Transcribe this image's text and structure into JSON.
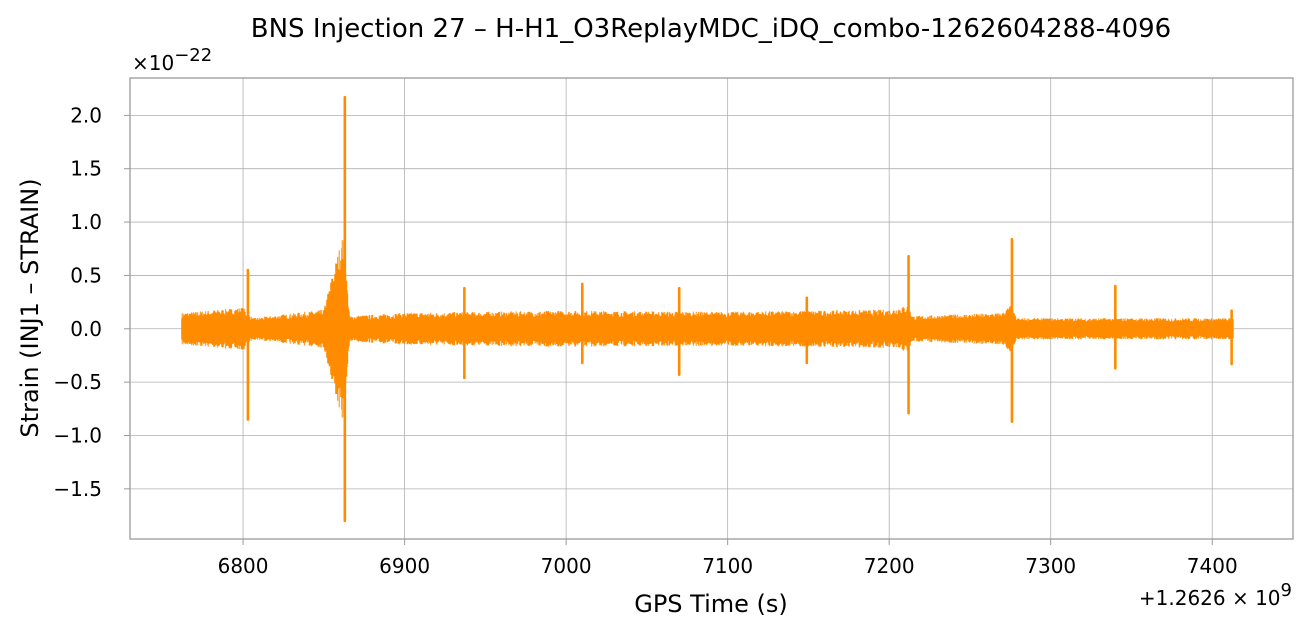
{
  "chart_data": {
    "type": "line",
    "title": "BNS Injection 27 – H-H1_O3ReplayMDC_iDQ_combo-1262604288-4096",
    "xlabel": "GPS Time (s)",
    "ylabel": "Strain (INJ1 – STRAIN)",
    "x_offset_label": "+1.2626 × 10^9",
    "y_scale_label": "×10^−22",
    "x_offset": 1262600000,
    "y_scale": 1e-22,
    "xlim": [
      6730,
      7450
    ],
    "ylim": [
      -1.97,
      2.35
    ],
    "xticks": [
      6800,
      6900,
      7000,
      7100,
      7200,
      7300,
      7400
    ],
    "yticks": [
      -1.5,
      -1.0,
      -0.5,
      0.0,
      0.5,
      1.0,
      1.5,
      2.0
    ],
    "ytick_labels": [
      "−1.5",
      "−1.0",
      "−0.5",
      "0.0",
      "0.5",
      "1.0",
      "1.5",
      "2.0"
    ],
    "grid": true,
    "series_color": "#ff8c00",
    "x_range": [
      6762,
      7413
    ],
    "spikes": [
      {
        "x": 6803,
        "max": 0.55,
        "min": -0.85
      },
      {
        "x": 6863,
        "max": 2.17,
        "min": -1.8
      },
      {
        "x": 6937,
        "max": 0.38,
        "min": -0.46
      },
      {
        "x": 7010,
        "max": 0.42,
        "min": -0.32
      },
      {
        "x": 7070,
        "max": 0.38,
        "min": -0.43
      },
      {
        "x": 7149,
        "max": 0.29,
        "min": -0.32
      },
      {
        "x": 7212,
        "max": 0.68,
        "min": -0.79
      },
      {
        "x": 7276,
        "max": 0.84,
        "min": -0.87
      },
      {
        "x": 7340,
        "max": 0.4,
        "min": -0.37
      },
      {
        "x": 7412,
        "max": 0.17,
        "min": -0.33
      }
    ],
    "noise_envelope": [
      {
        "x": 6762,
        "amp": 0.15
      },
      {
        "x": 6800,
        "amp": 0.2
      },
      {
        "x": 6806,
        "amp": 0.1
      },
      {
        "x": 6850,
        "amp": 0.18
      },
      {
        "x": 6855,
        "amp": 0.5
      },
      {
        "x": 6862,
        "amp": 0.9
      },
      {
        "x": 6866,
        "amp": 0.12
      },
      {
        "x": 6900,
        "amp": 0.15
      },
      {
        "x": 7000,
        "amp": 0.17
      },
      {
        "x": 7100,
        "amp": 0.16
      },
      {
        "x": 7200,
        "amp": 0.18
      },
      {
        "x": 7211,
        "amp": 0.22
      },
      {
        "x": 7215,
        "amp": 0.12
      },
      {
        "x": 7270,
        "amp": 0.15
      },
      {
        "x": 7275,
        "amp": 0.22
      },
      {
        "x": 7279,
        "amp": 0.1
      },
      {
        "x": 7413,
        "amp": 0.1
      }
    ]
  }
}
